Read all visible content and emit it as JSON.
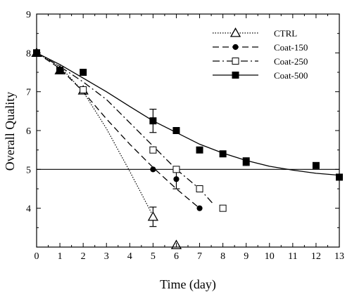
{
  "chart_data": {
    "type": "line",
    "title": "",
    "xlabel": "Time (day)",
    "ylabel": "Overall Quality",
    "xlim": [
      0,
      13
    ],
    "ylim": [
      3,
      9
    ],
    "xticks": [
      "0",
      "1",
      "2",
      "3",
      "4",
      "5",
      "6",
      "7",
      "8",
      "9",
      "10",
      "11",
      "12",
      "13"
    ],
    "yticks": [
      "4",
      "5",
      "6",
      "7",
      "8",
      "9"
    ],
    "grid": false,
    "legend_position": "top-right",
    "reference_line": {
      "y": 5
    },
    "series": [
      {
        "name": "CTRL",
        "marker": "open-triangle",
        "line_style": "dotted",
        "points": [
          {
            "x": 0,
            "y": 8.0
          },
          {
            "x": 1,
            "y": 7.55
          },
          {
            "x": 2,
            "y": 7.03
          },
          {
            "x": 5,
            "y": 3.78,
            "err": 0.25
          },
          {
            "x": 6,
            "y": 3.05
          }
        ],
        "fit": [
          {
            "x": 0,
            "y": 8.0
          },
          {
            "x": 1,
            "y": 7.65
          },
          {
            "x": 2,
            "y": 7.0
          },
          {
            "x": 3,
            "y": 6.05
          },
          {
            "x": 4,
            "y": 4.95
          },
          {
            "x": 5,
            "y": 3.8
          }
        ]
      },
      {
        "name": "Coat-150",
        "marker": "filled-circle",
        "line_style": "dashed",
        "points": [
          {
            "x": 0,
            "y": 8.0
          },
          {
            "x": 1,
            "y": 7.55
          },
          {
            "x": 2,
            "y": 7.05
          },
          {
            "x": 5,
            "y": 5.0
          },
          {
            "x": 6,
            "y": 4.75,
            "err": 0.25
          },
          {
            "x": 7,
            "y": 4.0
          }
        ],
        "fit": [
          {
            "x": 0,
            "y": 8.0
          },
          {
            "x": 1,
            "y": 7.6
          },
          {
            "x": 2,
            "y": 7.0
          },
          {
            "x": 3,
            "y": 6.3
          },
          {
            "x": 4,
            "y": 5.65
          },
          {
            "x": 5,
            "y": 5.05
          },
          {
            "x": 6,
            "y": 4.5
          },
          {
            "x": 7,
            "y": 4.0
          }
        ]
      },
      {
        "name": "Coat-250",
        "marker": "open-square",
        "line_style": "dash-dot",
        "points": [
          {
            "x": 0,
            "y": 8.0
          },
          {
            "x": 1,
            "y": 7.55
          },
          {
            "x": 2,
            "y": 7.05
          },
          {
            "x": 5,
            "y": 5.5
          },
          {
            "x": 6,
            "y": 5.0
          },
          {
            "x": 7,
            "y": 4.5
          },
          {
            "x": 8,
            "y": 4.0
          }
        ],
        "fit": [
          {
            "x": 0,
            "y": 8.0
          },
          {
            "x": 1,
            "y": 7.65
          },
          {
            "x": 2,
            "y": 7.25
          },
          {
            "x": 3,
            "y": 6.8
          },
          {
            "x": 4,
            "y": 6.2
          },
          {
            "x": 5,
            "y": 5.6
          },
          {
            "x": 6,
            "y": 5.0
          },
          {
            "x": 7,
            "y": 4.5
          },
          {
            "x": 7.6,
            "y": 4.1
          }
        ]
      },
      {
        "name": "Coat-500",
        "marker": "filled-square",
        "line_style": "solid",
        "points": [
          {
            "x": 0,
            "y": 8.0
          },
          {
            "x": 1,
            "y": 7.55
          },
          {
            "x": 2,
            "y": 7.5
          },
          {
            "x": 5,
            "y": 6.25,
            "err": 0.3
          },
          {
            "x": 6,
            "y": 6.0
          },
          {
            "x": 7,
            "y": 5.5
          },
          {
            "x": 8,
            "y": 5.4
          },
          {
            "x": 9,
            "y": 5.2,
            "err": 0.1
          },
          {
            "x": 12,
            "y": 5.1
          },
          {
            "x": 13,
            "y": 4.8
          }
        ],
        "fit": [
          {
            "x": 0,
            "y": 8.0
          },
          {
            "x": 1,
            "y": 7.7
          },
          {
            "x": 2,
            "y": 7.35
          },
          {
            "x": 3,
            "y": 7.0
          },
          {
            "x": 4,
            "y": 6.62
          },
          {
            "x": 5,
            "y": 6.25
          },
          {
            "x": 6,
            "y": 5.95
          },
          {
            "x": 7,
            "y": 5.65
          },
          {
            "x": 8,
            "y": 5.42
          },
          {
            "x": 9,
            "y": 5.23
          },
          {
            "x": 10,
            "y": 5.08
          },
          {
            "x": 11,
            "y": 4.98
          },
          {
            "x": 12,
            "y": 4.9
          },
          {
            "x": 13,
            "y": 4.85
          }
        ]
      }
    ]
  }
}
